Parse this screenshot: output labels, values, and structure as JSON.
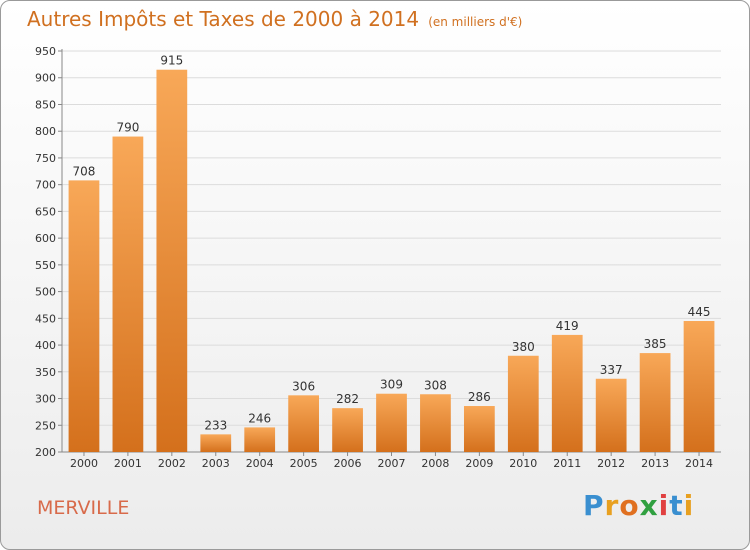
{
  "header": {
    "title": "Autres Impôts et Taxes de 2000 à 2014",
    "subtitle": "(en milliers d'€)"
  },
  "footer": {
    "commune": "MERVILLE",
    "brand": "Proxiti"
  },
  "colors": {
    "bar_light": "#f8a858",
    "bar_dark": "#d4701c",
    "title": "#d07020",
    "commune": "#d86a4a",
    "grid": "#dcdcdc"
  },
  "chart_data": {
    "type": "bar",
    "categories": [
      "2000",
      "2001",
      "2002",
      "2003",
      "2004",
      "2005",
      "2006",
      "2007",
      "2008",
      "2009",
      "2010",
      "2011",
      "2012",
      "2013",
      "2014"
    ],
    "values": [
      708,
      790,
      915,
      233,
      246,
      306,
      282,
      309,
      308,
      286,
      380,
      419,
      337,
      385,
      445
    ],
    "ylim": [
      200,
      950
    ],
    "yticks": [
      200,
      250,
      300,
      350,
      400,
      450,
      500,
      550,
      600,
      650,
      700,
      750,
      800,
      850,
      900,
      950
    ],
    "grid": true,
    "xlabel": "",
    "ylabel": ""
  }
}
